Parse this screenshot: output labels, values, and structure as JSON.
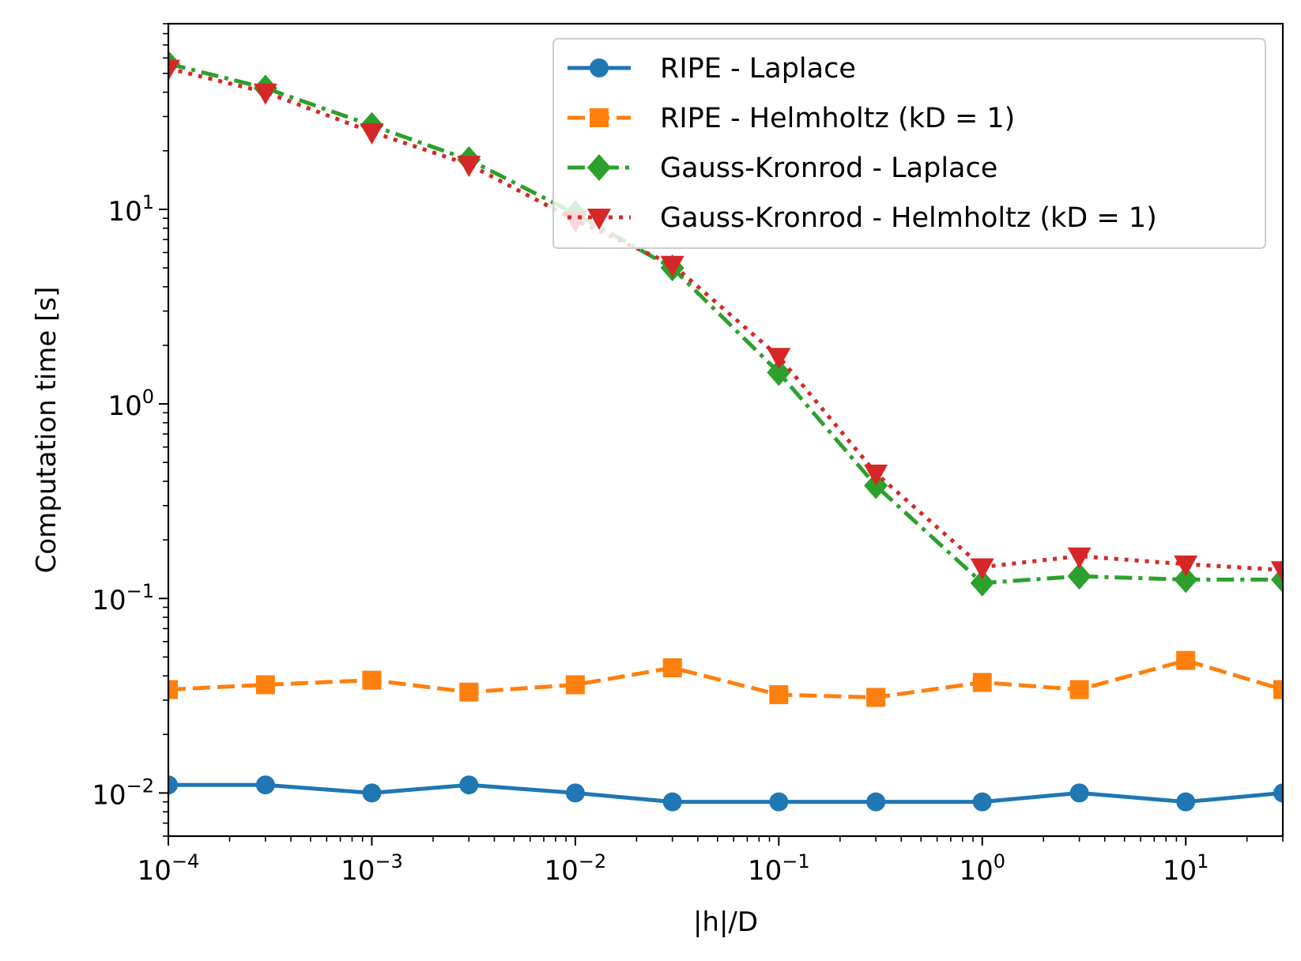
{
  "chart_data": {
    "type": "line",
    "x_scale": "log",
    "y_scale": "log",
    "xlabel": "|h|/D",
    "ylabel": "Computation time [s]",
    "xlim": [
      0.0001,
      30
    ],
    "ylim": [
      0.006,
      90
    ],
    "x_ticks": [
      {
        "value": 0.0001,
        "base": "10",
        "exp": "−4"
      },
      {
        "value": 0.001,
        "base": "10",
        "exp": "−3"
      },
      {
        "value": 0.01,
        "base": "10",
        "exp": "−2"
      },
      {
        "value": 0.1,
        "base": "10",
        "exp": "−1"
      },
      {
        "value": 1,
        "base": "10",
        "exp": "0"
      },
      {
        "value": 10,
        "base": "10",
        "exp": "1"
      }
    ],
    "y_ticks": [
      {
        "value": 0.01,
        "base": "10",
        "exp": "−2"
      },
      {
        "value": 0.1,
        "base": "10",
        "exp": "−1"
      },
      {
        "value": 1,
        "base": "10",
        "exp": "0"
      },
      {
        "value": 10,
        "base": "10",
        "exp": "1"
      }
    ],
    "x": [
      0.0001,
      0.0003,
      0.001,
      0.003,
      0.01,
      0.03,
      0.1,
      0.3,
      1,
      3,
      10,
      30
    ],
    "series": [
      {
        "name": "RIPE - Laplace",
        "color": "#1f77b4",
        "marker": "circle",
        "linestyle": "solid",
        "values": [
          0.011,
          0.011,
          0.01,
          0.011,
          0.01,
          0.009,
          0.009,
          0.009,
          0.009,
          0.01,
          0.009,
          0.01
        ]
      },
      {
        "name": "RIPE - Helmholtz (kD = 1)",
        "color": "#ff7f0e",
        "marker": "square",
        "linestyle": "dashed",
        "values": [
          0.034,
          0.036,
          0.038,
          0.033,
          0.036,
          0.044,
          0.032,
          0.031,
          0.037,
          0.034,
          0.048,
          0.034
        ]
      },
      {
        "name": "Gauss-Kronrod - Laplace",
        "color": "#2ca02c",
        "marker": "diamond",
        "linestyle": "dashdot",
        "values": [
          56,
          42,
          27,
          18,
          9.5,
          5.0,
          1.45,
          0.38,
          0.12,
          0.13,
          0.125,
          0.125
        ]
      },
      {
        "name": "Gauss-Kronrod - Helmholtz (kD = 1)",
        "color": "#d62728",
        "marker": "triangle-down",
        "linestyle": "dotted",
        "values": [
          53,
          40,
          25,
          17,
          8.8,
          5.2,
          1.75,
          0.44,
          0.145,
          0.165,
          0.15,
          0.14
        ]
      }
    ],
    "legend_position": "top-right"
  }
}
